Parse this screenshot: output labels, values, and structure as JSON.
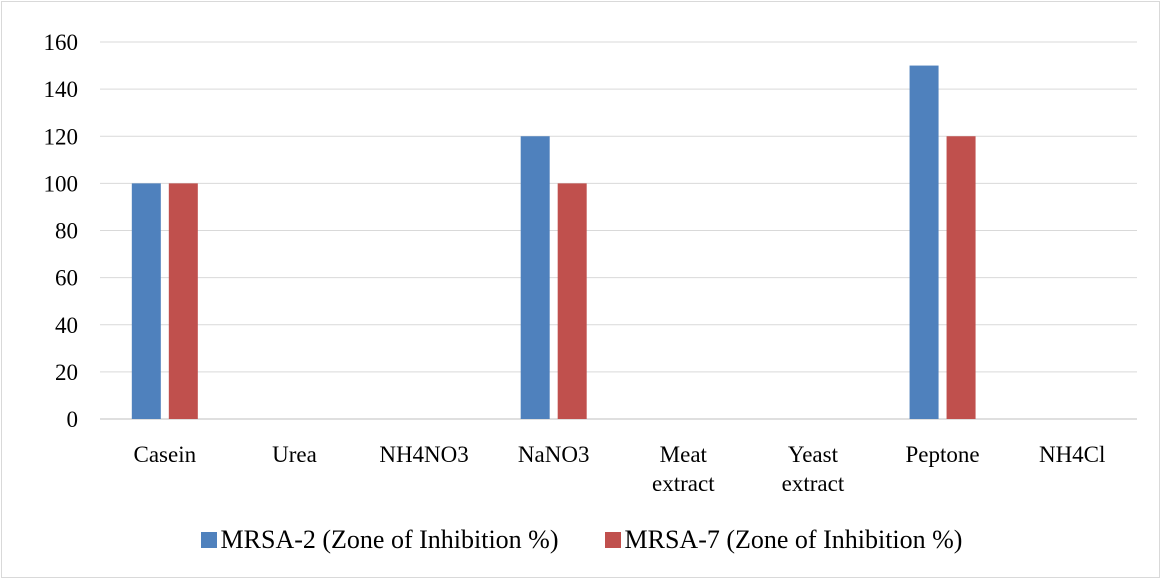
{
  "chart_data": {
    "type": "bar",
    "categories": [
      "Casein",
      "Urea",
      "NH4NO3",
      "NaNO3",
      "Meat extract",
      "Yeast extract",
      "Peptone",
      "NH4Cl"
    ],
    "category_lines": [
      [
        "Casein"
      ],
      [
        "Urea"
      ],
      [
        "NH4NO3"
      ],
      [
        "NaNO3"
      ],
      [
        "Meat",
        "extract"
      ],
      [
        "Yeast",
        "extract"
      ],
      [
        "Peptone"
      ],
      [
        "NH4Cl"
      ]
    ],
    "series": [
      {
        "name": "MRSA-2 (Zone of Inhibition %)",
        "color": "#4f81bd",
        "values": [
          100,
          0,
          0,
          120,
          0,
          0,
          150,
          0
        ]
      },
      {
        "name": "MRSA-7 (Zone of Inhibition %)",
        "color": "#c0504d",
        "values": [
          100,
          0,
          0,
          100,
          0,
          0,
          120,
          0
        ]
      }
    ],
    "yticks": [
      0,
      20,
      40,
      60,
      80,
      100,
      120,
      140,
      160
    ],
    "ylim": [
      0,
      160
    ],
    "grid": true,
    "legend_position": "bottom",
    "title": "",
    "xlabel": "",
    "ylabel": ""
  }
}
